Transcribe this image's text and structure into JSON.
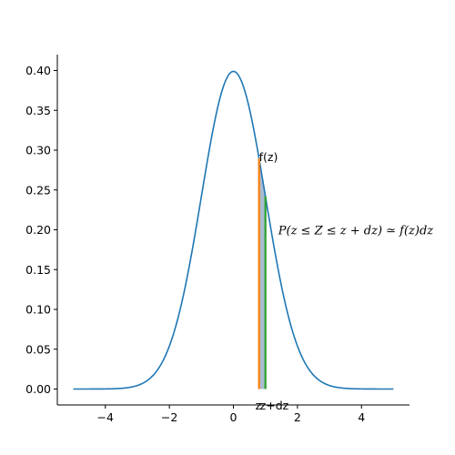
{
  "chart_data": {
    "type": "line",
    "title": "",
    "xlabel": "",
    "ylabel": "",
    "xlim": [
      -5.5,
      5.5
    ],
    "ylim": [
      -0.02,
      0.42
    ],
    "xticks": [
      -4,
      -2,
      0,
      2,
      4
    ],
    "xtick_labels": [
      "−4",
      "−2",
      "0",
      "2",
      "4"
    ],
    "yticks": [
      0.0,
      0.05,
      0.1,
      0.15,
      0.2,
      0.25,
      0.3,
      0.35,
      0.4
    ],
    "ytick_labels": [
      "0.00",
      "0.05",
      "0.10",
      "0.15",
      "0.20",
      "0.25",
      "0.30",
      "0.35",
      "0.40"
    ],
    "grid": false,
    "series": [
      {
        "function": "standard_normal_pdf",
        "x_range": [
          -5,
          5
        ],
        "color": "#1f77b4",
        "x": [
          -5,
          -4,
          -3,
          -2.5,
          -2,
          -1.5,
          -1,
          -0.5,
          0,
          0.5,
          1,
          1.5,
          2,
          2.5,
          3,
          4,
          5
        ],
        "y": [
          1.5e-06,
          0.000134,
          0.00443,
          0.0175,
          0.054,
          0.1295,
          0.242,
          0.352,
          0.3989,
          0.352,
          0.242,
          0.1295,
          0.054,
          0.0175,
          0.00443,
          0.000134,
          1.5e-06
        ]
      }
    ],
    "vlines": [
      {
        "x": 0.8,
        "ymax": 0.2897,
        "color": "#ff7f0e"
      },
      {
        "x": 1.0,
        "ymax": 0.242,
        "color": "#2ca02c"
      }
    ],
    "shaded_region": {
      "x_from": 0.8,
      "x_to": 1.0,
      "color": "#a9bcd0"
    },
    "annotations": {
      "fz": {
        "text": "f(z)",
        "x": 0.8,
        "y": 0.29
      },
      "prob": {
        "text": "P(z ≤ Z ≤ z + dz) ≃ f(z)dz",
        "x": 1.4,
        "y": 0.2
      },
      "z": {
        "text": "z",
        "x": 0.8,
        "y": -0.012
      },
      "zdz": {
        "text": "z+dz",
        "x": 1.0,
        "y": -0.012
      }
    }
  }
}
